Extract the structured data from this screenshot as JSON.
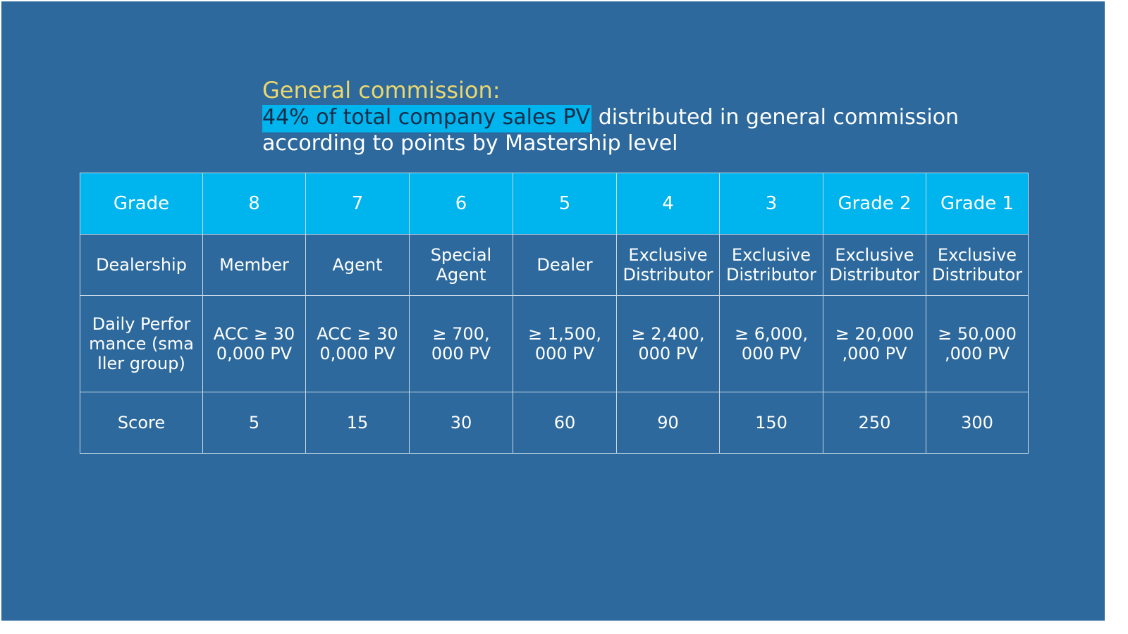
{
  "slide": {
    "heading": "General commission:",
    "subtitle": {
      "highlight": "44% of total company sales P",
      "highlight_tail": "V",
      "line1_rest": " distributed in general commission",
      "line2": "according to points by Mastership level"
    }
  },
  "table": {
    "header": [
      "Grade",
      "8",
      "7",
      "6",
      "5",
      "4",
      "3",
      "Grade 2",
      "Grade 1"
    ],
    "rows": [
      [
        "Dealership",
        "Member",
        "Agent",
        "Special\nAgent",
        "Dealer",
        "Exclusive\nDistributor",
        "Exclusive\nDistributor",
        "Exclusive\nDistributor",
        "Exclusive\nDistributor"
      ],
      [
        "Daily Perfor\nmance (sma\nller group)",
        "ACC ≥ 30\n0,000 PV",
        "ACC ≥ 30\n0,000 PV",
        "≥ 700,\n000 PV",
        "≥ 1,500,\n000 PV",
        "≥ 2,400,\n000 PV",
        "≥ 6,000,\n000 PV",
        "≥ 20,000\n,000 PV",
        "≥ 50,000\n,000 PV"
      ],
      [
        "Score",
        "5",
        "15",
        "30",
        "60",
        "90",
        "150",
        "250",
        "300"
      ]
    ]
  },
  "colors": {
    "background": "#2d699c",
    "header_fill": "#00b4ee",
    "heading_text": "#ecd76e",
    "highlight_text": "#152c48"
  }
}
